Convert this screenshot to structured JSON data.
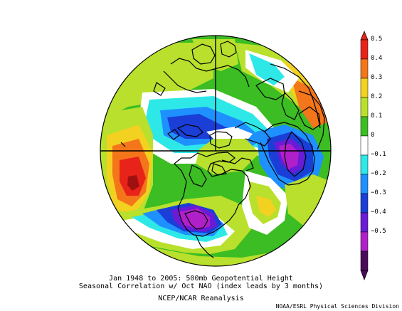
{
  "map": {
    "projection": "north-polar-stereographic",
    "variable": "500mb Geopotential Height",
    "field_colors": {
      "red": "#e8231a",
      "orange": "#f4761b",
      "yellow": "#f2d120",
      "light_green": "#b9e02c",
      "green": "#3bbd23",
      "white": "#ffffff",
      "cyan": "#2ee8e8",
      "light_blue": "#1e90ff",
      "blue": "#1a3ed6",
      "purple": "#6a1bd6",
      "magenta": "#b020c8",
      "dark_purple": "#4a0a5a"
    }
  },
  "colorbar": {
    "ticks": [
      "0.5",
      "0.4",
      "0.3",
      "0.2",
      "0.1",
      "0",
      "−0.1",
      "−0.2",
      "−0.3",
      "−0.4",
      "−0.5"
    ],
    "colors": [
      "#e8231a",
      "#f4761b",
      "#f2d120",
      "#b9e02c",
      "#3bbd23",
      "#ffffff",
      "#2ee8e8",
      "#1e90ff",
      "#1a3ed6",
      "#6a1bd6",
      "#b020c8",
      "#4a0a5a"
    ]
  },
  "captions": {
    "line1": "Jan 1948 to 2005: 500mb Geopotential Height",
    "line2": "Seasonal Correlation w/ Oct NAO (index leads by 3 months)",
    "line3": "NCEP/NCAR Reanalysis",
    "credit": "NOAA/ESRL Physical Sciences Division"
  }
}
